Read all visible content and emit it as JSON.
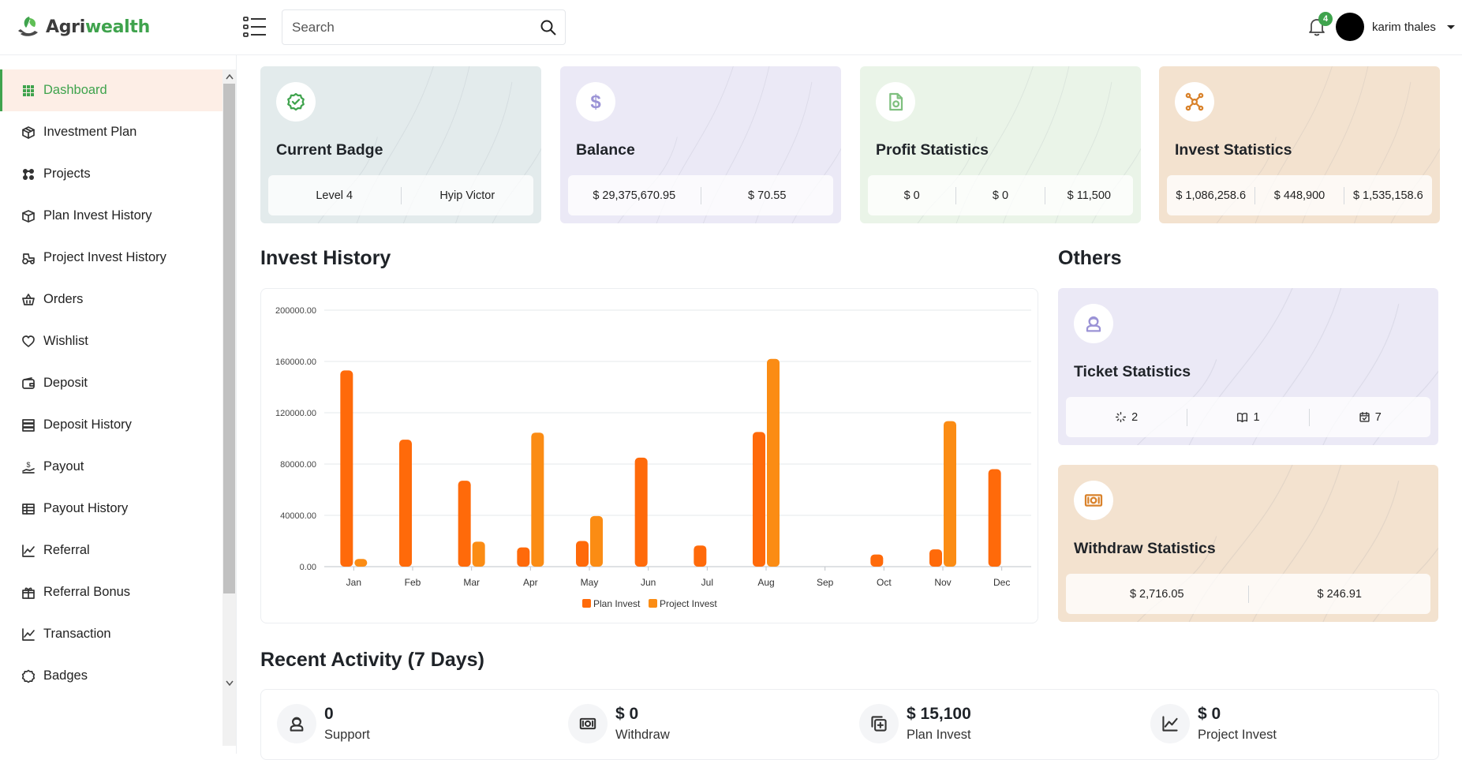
{
  "brand": {
    "name_part1": "Agri",
    "name_part2": "wealth"
  },
  "header": {
    "search_placeholder": "Search",
    "notifications_count": "4",
    "user_name": "karim thales"
  },
  "sidebar": {
    "items": [
      {
        "label": "Dashboard",
        "icon": "grid-icon",
        "active": true
      },
      {
        "label": "Investment Plan",
        "icon": "cube-icon"
      },
      {
        "label": "Projects",
        "icon": "puzzle-icon"
      },
      {
        "label": "Plan Invest History",
        "icon": "box-icon"
      },
      {
        "label": "Project Invest History",
        "icon": "tractor-icon"
      },
      {
        "label": "Orders",
        "icon": "basket-icon"
      },
      {
        "label": "Wishlist",
        "icon": "heart-icon"
      },
      {
        "label": "Deposit",
        "icon": "wallet-icon"
      },
      {
        "label": "Deposit History",
        "icon": "server-icon"
      },
      {
        "label": "Payout",
        "icon": "hand-dollar-icon"
      },
      {
        "label": "Payout History",
        "icon": "table-icon"
      },
      {
        "label": "Referral",
        "icon": "line-chart-icon"
      },
      {
        "label": "Referral Bonus",
        "icon": "gift-icon"
      },
      {
        "label": "Transaction",
        "icon": "line-chart-icon"
      },
      {
        "label": "Badges",
        "icon": "badge-icon"
      }
    ]
  },
  "stat_cards": [
    {
      "title": "Current Badge",
      "icon": "badge-check-icon",
      "bg": "#e3ebec",
      "icon_color": "#3fa34d",
      "values": [
        "Level 4",
        "Hyip Victor"
      ]
    },
    {
      "title": "Balance",
      "icon": "dollar-icon",
      "bg": "#ebe9f6",
      "icon_color": "#9b93d6",
      "values": [
        "$ 29,375,670.95",
        "$ 70.55"
      ]
    },
    {
      "title": "Profit Statistics",
      "icon": "document-icon",
      "bg": "#eaf4e8",
      "icon_color": "#7fc07f",
      "values": [
        "$ 0",
        "$ 0",
        "$ 11,500"
      ]
    },
    {
      "title": "Invest Statistics",
      "icon": "network-icon",
      "bg": "#f3e2cf",
      "icon_color": "#d9822b",
      "values": [
        "$ 1,086,258.6",
        "$ 448,900",
        "$ 1,535,158.6"
      ]
    }
  ],
  "sections": {
    "invest_history": "Invest History",
    "others": "Others",
    "recent_activity": "Recent Activity (7 Days)"
  },
  "others": [
    {
      "title": "Ticket Statistics",
      "icon": "support-icon",
      "bg": "#ebe9f6",
      "icon_color": "#9b93d6",
      "values": [
        {
          "icon": "spinner-icon",
          "text": "2"
        },
        {
          "icon": "book-open-icon",
          "text": "1"
        },
        {
          "icon": "calendar-check-icon",
          "text": "7"
        }
      ]
    },
    {
      "title": "Withdraw Statistics",
      "icon": "cash-icon",
      "bg": "#f3e2cf",
      "icon_color": "#d9822b",
      "values": [
        {
          "text": "$ 2,716.05"
        },
        {
          "text": "$ 246.91"
        }
      ]
    }
  ],
  "activity": [
    {
      "value": "0",
      "label": "Support",
      "icon": "support-icon"
    },
    {
      "value": "$ 0",
      "label": "Withdraw",
      "icon": "cash-icon"
    },
    {
      "value": "$ 15,100",
      "label": "Plan Invest",
      "icon": "copy-plus-icon"
    },
    {
      "value": "$ 0",
      "label": "Project Invest",
      "icon": "line-chart-icon"
    }
  ],
  "chart_data": {
    "type": "bar",
    "categories": [
      "Jan",
      "Feb",
      "Mar",
      "Apr",
      "May",
      "Jun",
      "Jul",
      "Aug",
      "Sep",
      "Oct",
      "Nov",
      "Dec"
    ],
    "series": [
      {
        "name": "Plan Invest",
        "color": "#ff6a0a",
        "values": [
          153000,
          99000,
          67000,
          15000,
          20000,
          85000,
          16500,
          105000,
          0,
          9500,
          13500,
          76000
        ]
      },
      {
        "name": "Project Invest",
        "color": "#fb8c14",
        "values": [
          6000,
          0,
          19500,
          104500,
          39500,
          0,
          0,
          162000,
          0,
          0,
          113500,
          0
        ]
      }
    ],
    "yticks": [
      "0.00",
      "40000.00",
      "80000.00",
      "120000.00",
      "160000.00",
      "200000.00"
    ],
    "ylim": [
      0,
      200000
    ],
    "grid": true,
    "legend": "bottom"
  }
}
